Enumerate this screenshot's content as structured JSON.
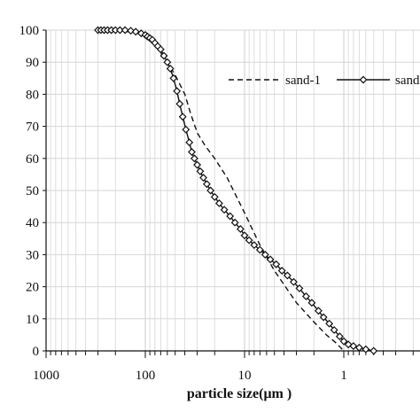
{
  "chart_data": {
    "type": "line",
    "xlabel": "particle size(μm )",
    "ylabel": "",
    "x_scale": "log",
    "x_reversed": true,
    "xlim": [
      1000,
      0.5
    ],
    "ylim": [
      0,
      100
    ],
    "x_ticks": [
      1000,
      100,
      10,
      1
    ],
    "x_tick_labels": [
      "1000",
      "100",
      "10",
      "1"
    ],
    "y_ticks": [
      0,
      10,
      20,
      30,
      40,
      50,
      60,
      70,
      80,
      90,
      100
    ],
    "y_tick_labels": [
      "0",
      "10",
      "20",
      "30",
      "40",
      "50",
      "60",
      "70",
      "80",
      "90",
      "100"
    ],
    "grid": true,
    "legend_position": "upper-right",
    "colors": {
      "line": "#111111",
      "grid": "#d6d6d6",
      "axis": "#111111"
    },
    "series": [
      {
        "name": "sand-1",
        "style": "dashed",
        "marker": "none",
        "x": [
          300,
          150,
          120,
          100,
          85,
          70,
          60,
          50,
          40,
          35,
          30,
          25,
          20,
          15,
          10,
          7,
          5,
          3,
          2,
          1.5,
          1.2,
          1
        ],
        "y": [
          100,
          99.5,
          99,
          98,
          96,
          93,
          90,
          86,
          80,
          74,
          68,
          64,
          60,
          54,
          43,
          33,
          25,
          15,
          9,
          5,
          2.5,
          0
        ]
      },
      {
        "name": "sand",
        "style": "solid",
        "marker": "diamond",
        "x": [
          300,
          280,
          260,
          240,
          220,
          200,
          180,
          160,
          140,
          125,
          110,
          100,
          95,
          90,
          85,
          80,
          75,
          70,
          65,
          60,
          56,
          52,
          48,
          45,
          42,
          39,
          36,
          34,
          32,
          30,
          28,
          26,
          24,
          22,
          20,
          18,
          16,
          14,
          12.5,
          11,
          10,
          9,
          8,
          7,
          6.2,
          5.5,
          4.8,
          4.2,
          3.7,
          3.2,
          2.8,
          2.4,
          2.1,
          1.8,
          1.6,
          1.4,
          1.25,
          1.1,
          1,
          0.9,
          0.8,
          0.7,
          0.6,
          0.5
        ],
        "y": [
          100,
          100,
          100,
          100,
          100,
          100,
          100,
          100,
          99.8,
          99.5,
          99,
          98.5,
          98,
          97.5,
          97,
          96,
          95,
          94,
          92,
          90,
          88,
          85,
          81,
          77,
          73,
          69,
          65,
          62,
          60,
          58,
          56,
          54,
          52,
          50,
          48,
          46,
          44,
          42,
          40,
          38,
          36,
          34.5,
          33,
          31.5,
          30,
          28.5,
          27,
          25,
          23.5,
          21.5,
          19.5,
          17,
          15,
          12.5,
          10.5,
          8.5,
          6.5,
          4.5,
          3,
          2,
          1.5,
          1,
          0.5,
          0
        ]
      }
    ]
  }
}
